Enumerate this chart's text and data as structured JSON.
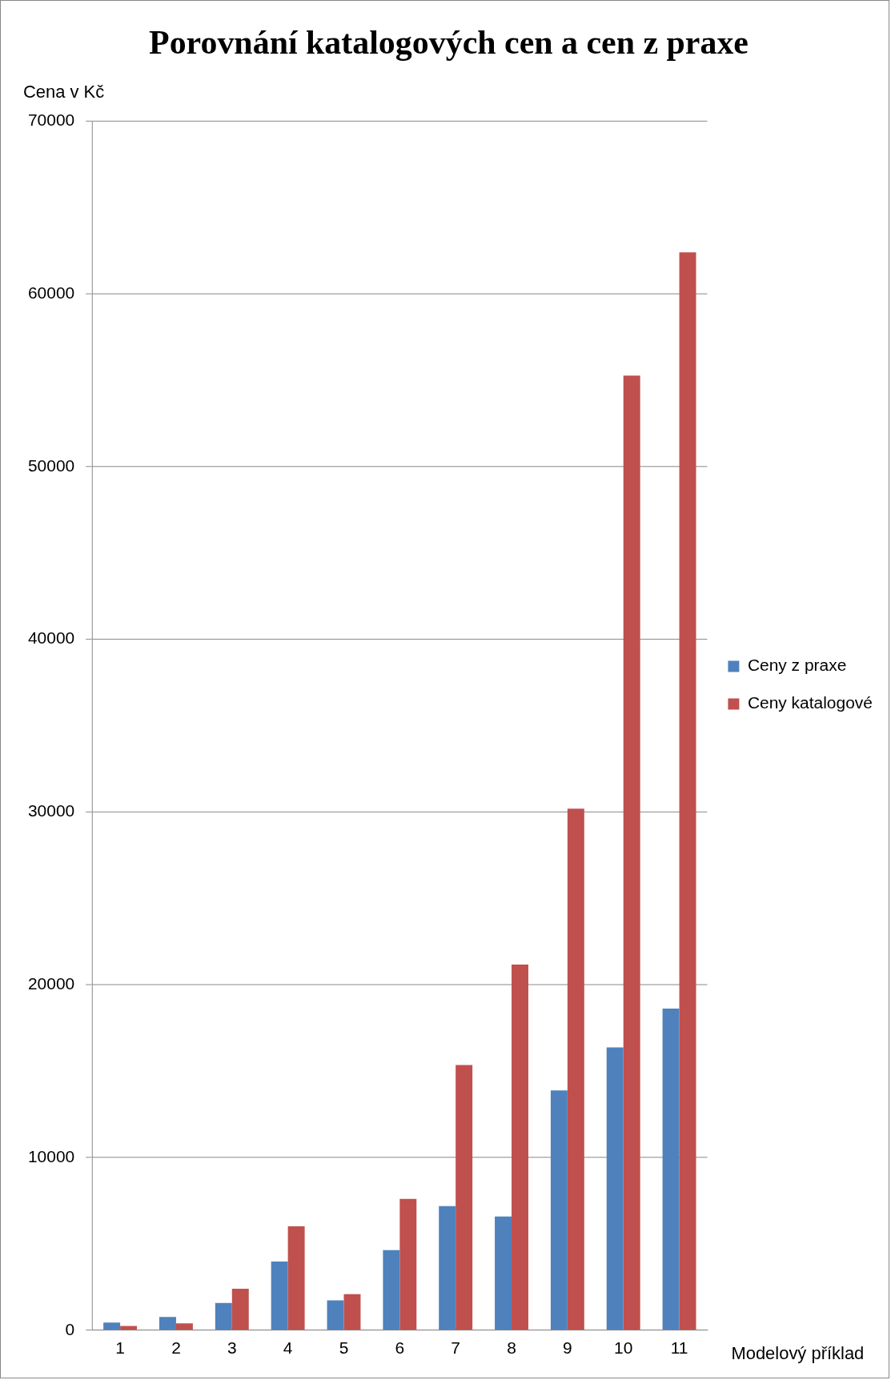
{
  "chart_data": {
    "type": "bar",
    "title": "Porovnání katalogových cen a cen z praxe",
    "xlabel": "Modelový příklad",
    "ylabel": "Cena v Kč",
    "categories": [
      "1",
      "2",
      "3",
      "4",
      "5",
      "6",
      "7",
      "8",
      "9",
      "10",
      "11"
    ],
    "series": [
      {
        "name": "Ceny z praxe",
        "color": "#4f81bd",
        "values": [
          450,
          770,
          1580,
          3980,
          1730,
          4640,
          7190,
          6580,
          13880,
          16380,
          18620
        ]
      },
      {
        "name": "Ceny katalogové",
        "color": "#c0504d",
        "values": [
          250,
          400,
          2400,
          6020,
          2090,
          7600,
          15360,
          21170,
          30200,
          55260,
          62400
        ]
      }
    ],
    "ylim": [
      0,
      70000
    ],
    "yticks": [
      0,
      10000,
      20000,
      30000,
      40000,
      50000,
      60000,
      70000
    ],
    "grid": "y",
    "legend": "right"
  }
}
